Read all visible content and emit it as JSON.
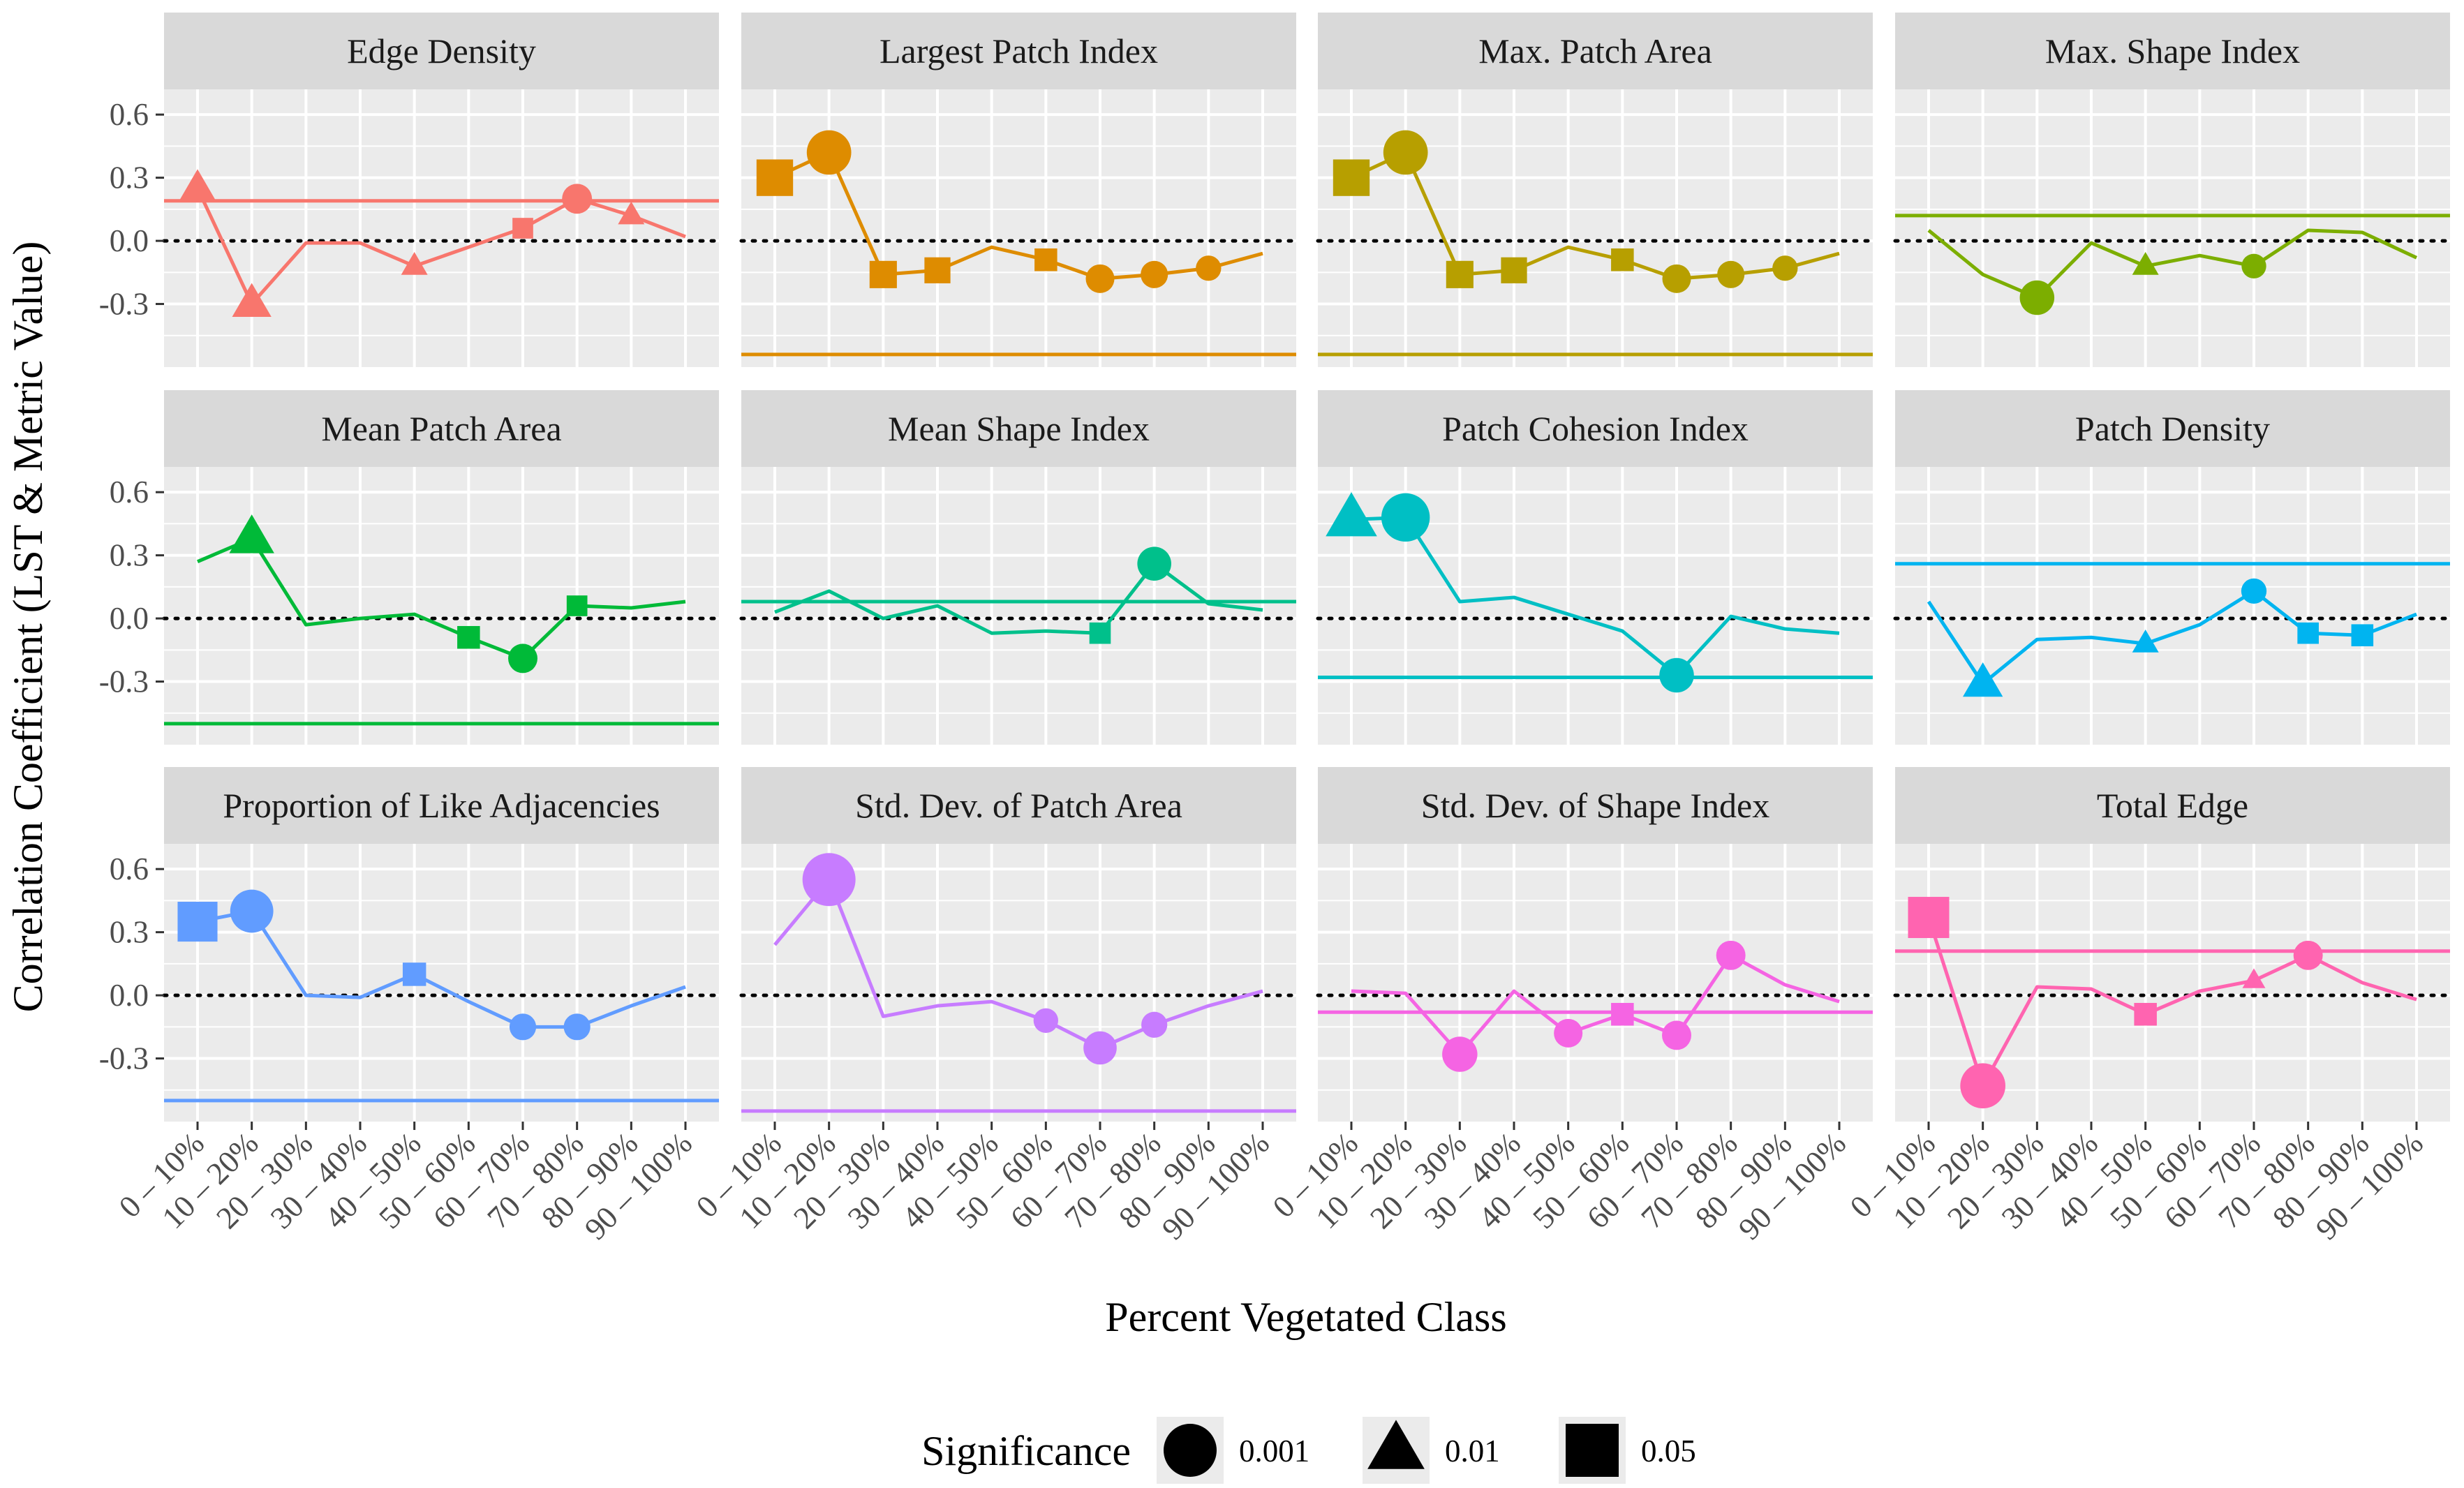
{
  "chart_data": {
    "type": "line",
    "layout": "facet-grid 3 rows x 4 columns",
    "x_categories": [
      "0 – 10%",
      "10 – 20%",
      "20 – 30%",
      "30 – 40%",
      "40 – 50%",
      "50 – 60%",
      "60 – 70%",
      "70 – 80%",
      "80 – 90%",
      "90 – 100%"
    ],
    "xlabel": "Percent Vegetated Class",
    "ylabel": "Correlation Coefficient (LST & Metric Value)",
    "ylim": [
      -0.6,
      0.72
    ],
    "y_ticks": [
      0.6,
      0.3,
      0.0,
      -0.3
    ],
    "y_tick_labels": [
      "0.6",
      "0.3",
      "0.0",
      "-0.3"
    ],
    "zero_reference_line": "dotted",
    "grid": true,
    "legend": {
      "title": "Significance",
      "position": "bottom",
      "entries": [
        {
          "label": "0.001",
          "shape": "circle"
        },
        {
          "label": "0.01",
          "shape": "triangle"
        },
        {
          "label": "0.05",
          "shape": "square"
        }
      ]
    },
    "panels": [
      {
        "title": "Edge Density",
        "color": "#F8766D",
        "hline": 0.19,
        "values": [
          0.25,
          -0.3,
          -0.01,
          -0.01,
          -0.12,
          -0.03,
          0.06,
          0.2,
          0.12,
          0.02
        ],
        "significance": [
          "0.01",
          "0.01",
          null,
          null,
          "0.01",
          null,
          "0.05",
          "0.001",
          "0.01",
          null
        ]
      },
      {
        "title": "Largest Patch Index",
        "color": "#DE8C00",
        "hline": -0.54,
        "values": [
          0.3,
          0.42,
          -0.16,
          -0.14,
          -0.03,
          -0.09,
          -0.18,
          -0.16,
          -0.13,
          -0.06
        ],
        "significance": [
          "0.05",
          "0.001",
          "0.05",
          "0.05",
          null,
          "0.05",
          "0.001",
          "0.001",
          "0.001",
          null
        ]
      },
      {
        "title": "Max. Patch Area",
        "color": "#B79F00",
        "hline": -0.54,
        "values": [
          0.3,
          0.42,
          -0.16,
          -0.14,
          -0.03,
          -0.09,
          -0.18,
          -0.16,
          -0.13,
          -0.06
        ],
        "significance": [
          "0.05",
          "0.001",
          "0.05",
          "0.05",
          null,
          "0.05",
          "0.001",
          "0.001",
          "0.001",
          null
        ]
      },
      {
        "title": "Max. Shape Index",
        "color": "#7CAE00",
        "hline": 0.12,
        "values": [
          0.05,
          -0.16,
          -0.27,
          -0.01,
          -0.12,
          -0.07,
          -0.12,
          0.05,
          0.04,
          -0.08
        ],
        "significance": [
          null,
          null,
          "0.001",
          null,
          "0.01",
          null,
          "0.001",
          null,
          null,
          null
        ]
      },
      {
        "title": "Mean Patch Area",
        "color": "#00BA38",
        "hline": -0.5,
        "values": [
          0.27,
          0.38,
          -0.03,
          0.0,
          0.02,
          -0.09,
          -0.19,
          0.06,
          0.05,
          0.08
        ],
        "significance": [
          null,
          "0.01",
          null,
          null,
          null,
          "0.05",
          "0.001",
          "0.05",
          null,
          null
        ]
      },
      {
        "title": "Mean Shape Index",
        "color": "#00C08B",
        "hline": 0.08,
        "values": [
          0.03,
          0.13,
          0.0,
          0.06,
          -0.07,
          -0.06,
          -0.07,
          0.26,
          0.07,
          0.04
        ],
        "significance": [
          null,
          null,
          null,
          null,
          null,
          null,
          "0.05",
          "0.001",
          null,
          null
        ]
      },
      {
        "title": "Patch Cohesion Index",
        "color": "#00BFC4",
        "hline": -0.28,
        "values": [
          0.47,
          0.48,
          0.08,
          0.1,
          0.02,
          -0.06,
          -0.27,
          0.01,
          -0.05,
          -0.07
        ],
        "significance": [
          "0.01",
          "0.001",
          null,
          null,
          null,
          null,
          "0.001",
          null,
          null,
          null
        ]
      },
      {
        "title": "Patch Density",
        "color": "#00B4F0",
        "hline": 0.26,
        "values": [
          0.08,
          -0.31,
          -0.1,
          -0.09,
          -0.12,
          -0.03,
          0.13,
          -0.07,
          -0.08,
          0.02
        ],
        "significance": [
          null,
          "0.01",
          null,
          null,
          "0.01",
          null,
          "0.001",
          "0.05",
          "0.05",
          null
        ]
      },
      {
        "title": "Proportion of Like Adjacencies",
        "color": "#619CFF",
        "hline": -0.5,
        "values": [
          0.35,
          0.4,
          0.0,
          -0.01,
          0.1,
          -0.03,
          -0.15,
          -0.15,
          -0.05,
          0.04
        ],
        "significance": [
          "0.05",
          "0.001",
          null,
          null,
          "0.05",
          null,
          "0.001",
          "0.001",
          null,
          null
        ]
      },
      {
        "title": "Std. Dev. of Patch Area",
        "color": "#C77CFF",
        "hline": -0.55,
        "values": [
          0.24,
          0.55,
          -0.1,
          -0.05,
          -0.03,
          -0.12,
          -0.25,
          -0.14,
          -0.05,
          0.02
        ],
        "significance": [
          null,
          "0.001",
          null,
          null,
          null,
          "0.001",
          "0.001",
          "0.001",
          null,
          null
        ]
      },
      {
        "title": "Std. Dev. of Shape Index",
        "color": "#F564E3",
        "hline": -0.08,
        "values": [
          0.02,
          0.01,
          -0.28,
          0.02,
          -0.18,
          -0.09,
          -0.19,
          0.19,
          0.05,
          -0.03
        ],
        "significance": [
          null,
          null,
          "0.001",
          null,
          "0.001",
          "0.05",
          "0.001",
          "0.001",
          null,
          null
        ]
      },
      {
        "title": "Total Edge",
        "color": "#FF64B0",
        "hline": 0.21,
        "values": [
          0.37,
          -0.43,
          0.04,
          0.03,
          -0.09,
          0.02,
          0.07,
          0.19,
          0.06,
          -0.02
        ],
        "significance": [
          "0.05",
          "0.001",
          null,
          null,
          "0.05",
          null,
          "0.01",
          "0.001",
          null,
          null
        ]
      }
    ]
  }
}
